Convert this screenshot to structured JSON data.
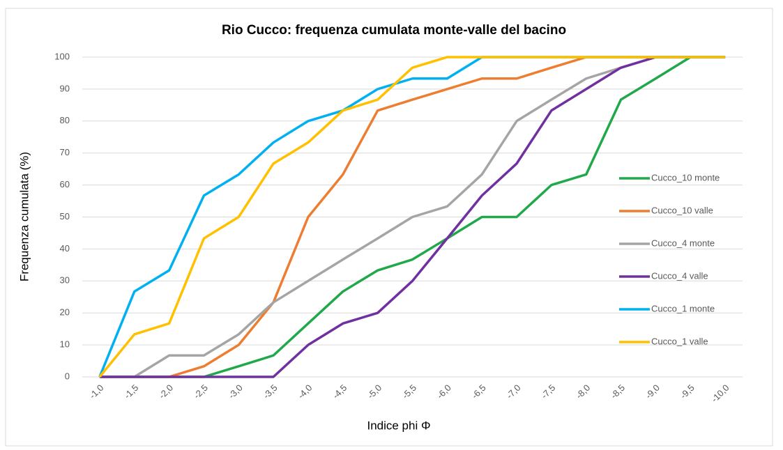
{
  "chart_data": {
    "type": "line",
    "title": "Rio Cucco: frequenza cumulata monte-valle del bacino",
    "x_label": "Indice phi Φ",
    "y_label": "Frequenza cumulata (%)",
    "categories": [
      "-1,0",
      "-1,5",
      "-2,0",
      "-2,5",
      "-3,0",
      "-3,5",
      "-4,0",
      "-4,5",
      "-5,0",
      "-5,5",
      "-6,0",
      "-6,5",
      "-7,0",
      "-7,5",
      "-8,0",
      "-8,5",
      "-9,0",
      "-9,5",
      "-10,0"
    ],
    "series": [
      {
        "name": "Cucco_10 monte",
        "color": "#21a84a",
        "values": [
          0,
          0,
          0,
          0,
          3.3,
          6.7,
          16.7,
          26.7,
          33.3,
          36.7,
          43.3,
          50,
          50,
          60,
          63.3,
          86.7,
          93.3,
          100,
          100
        ]
      },
      {
        "name": "Cucco_10 valle",
        "color": "#ed7d31",
        "values": [
          0,
          0,
          0,
          3.3,
          10,
          23.3,
          50,
          63.3,
          83.3,
          86.7,
          90,
          93.3,
          93.3,
          96.7,
          100,
          100,
          100,
          100,
          100
        ]
      },
      {
        "name": "Cucco_4 monte",
        "color": "#a5a5a5",
        "values": [
          0,
          0,
          6.7,
          6.7,
          13.3,
          23.3,
          30,
          36.7,
          43.3,
          50,
          53.3,
          63.3,
          80,
          86.7,
          93.3,
          96.7,
          100,
          100,
          100
        ]
      },
      {
        "name": "Cucco_4 valle",
        "color": "#7030a0",
        "values": [
          0,
          0,
          0,
          0,
          0,
          0,
          10,
          16.7,
          20,
          30,
          43.3,
          56.7,
          66.7,
          83.3,
          90,
          96.7,
          100,
          100,
          100
        ]
      },
      {
        "name": "Cucco_1 monte",
        "color": "#00b0f0",
        "values": [
          0,
          26.7,
          33.3,
          56.7,
          63.3,
          73.3,
          80,
          83.3,
          90,
          93.3,
          93.3,
          100,
          100,
          100,
          100,
          100,
          100,
          100,
          100
        ]
      },
      {
        "name": "Cucco_1 valle",
        "color": "#ffc000",
        "values": [
          0,
          13.3,
          16.7,
          43.3,
          50,
          66.7,
          73.3,
          83.3,
          86.7,
          96.7,
          100,
          100,
          100,
          100,
          100,
          100,
          100,
          100,
          100
        ]
      }
    ],
    "ylim": [
      0,
      100
    ],
    "yticks": [
      0,
      10,
      20,
      30,
      40,
      50,
      60,
      70,
      80,
      90,
      100
    ],
    "grid": true,
    "legend": "right"
  }
}
